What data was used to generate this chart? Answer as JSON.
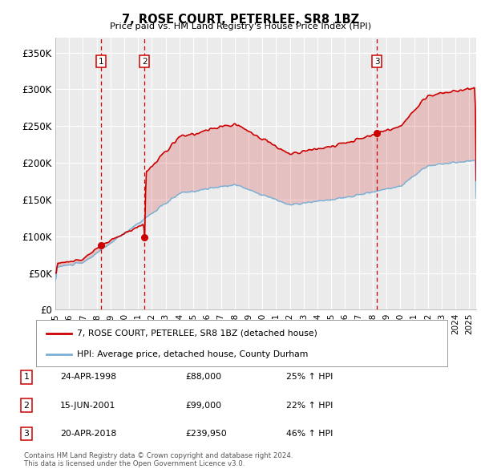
{
  "title": "7, ROSE COURT, PETERLEE, SR8 1BZ",
  "subtitle": "Price paid vs. HM Land Registry's House Price Index (HPI)",
  "ylim": [
    0,
    370000
  ],
  "yticks": [
    0,
    50000,
    100000,
    150000,
    200000,
    250000,
    300000,
    350000
  ],
  "ytick_labels": [
    "£0",
    "£50K",
    "£100K",
    "£150K",
    "£200K",
    "£250K",
    "£300K",
    "£350K"
  ],
  "sale_dates": [
    1998.31,
    2001.46,
    2018.31
  ],
  "sale_prices": [
    88000,
    99000,
    239950
  ],
  "sale_labels": [
    "1",
    "2",
    "3"
  ],
  "red_color": "#cc0000",
  "blue_color": "#7bafd4",
  "legend_entries": [
    "7, ROSE COURT, PETERLEE, SR8 1BZ (detached house)",
    "HPI: Average price, detached house, County Durham"
  ],
  "table_rows": [
    [
      "1",
      "24-APR-1998",
      "£88,000",
      "25% ↑ HPI"
    ],
    [
      "2",
      "15-JUN-2001",
      "£99,000",
      "22% ↑ HPI"
    ],
    [
      "3",
      "20-APR-2018",
      "£239,950",
      "46% ↑ HPI"
    ]
  ],
  "footnote": "Contains HM Land Registry data © Crown copyright and database right 2024.\nThis data is licensed under the Open Government Licence v3.0.",
  "background_color": "#ffffff",
  "plot_bg_color": "#ebebeb"
}
